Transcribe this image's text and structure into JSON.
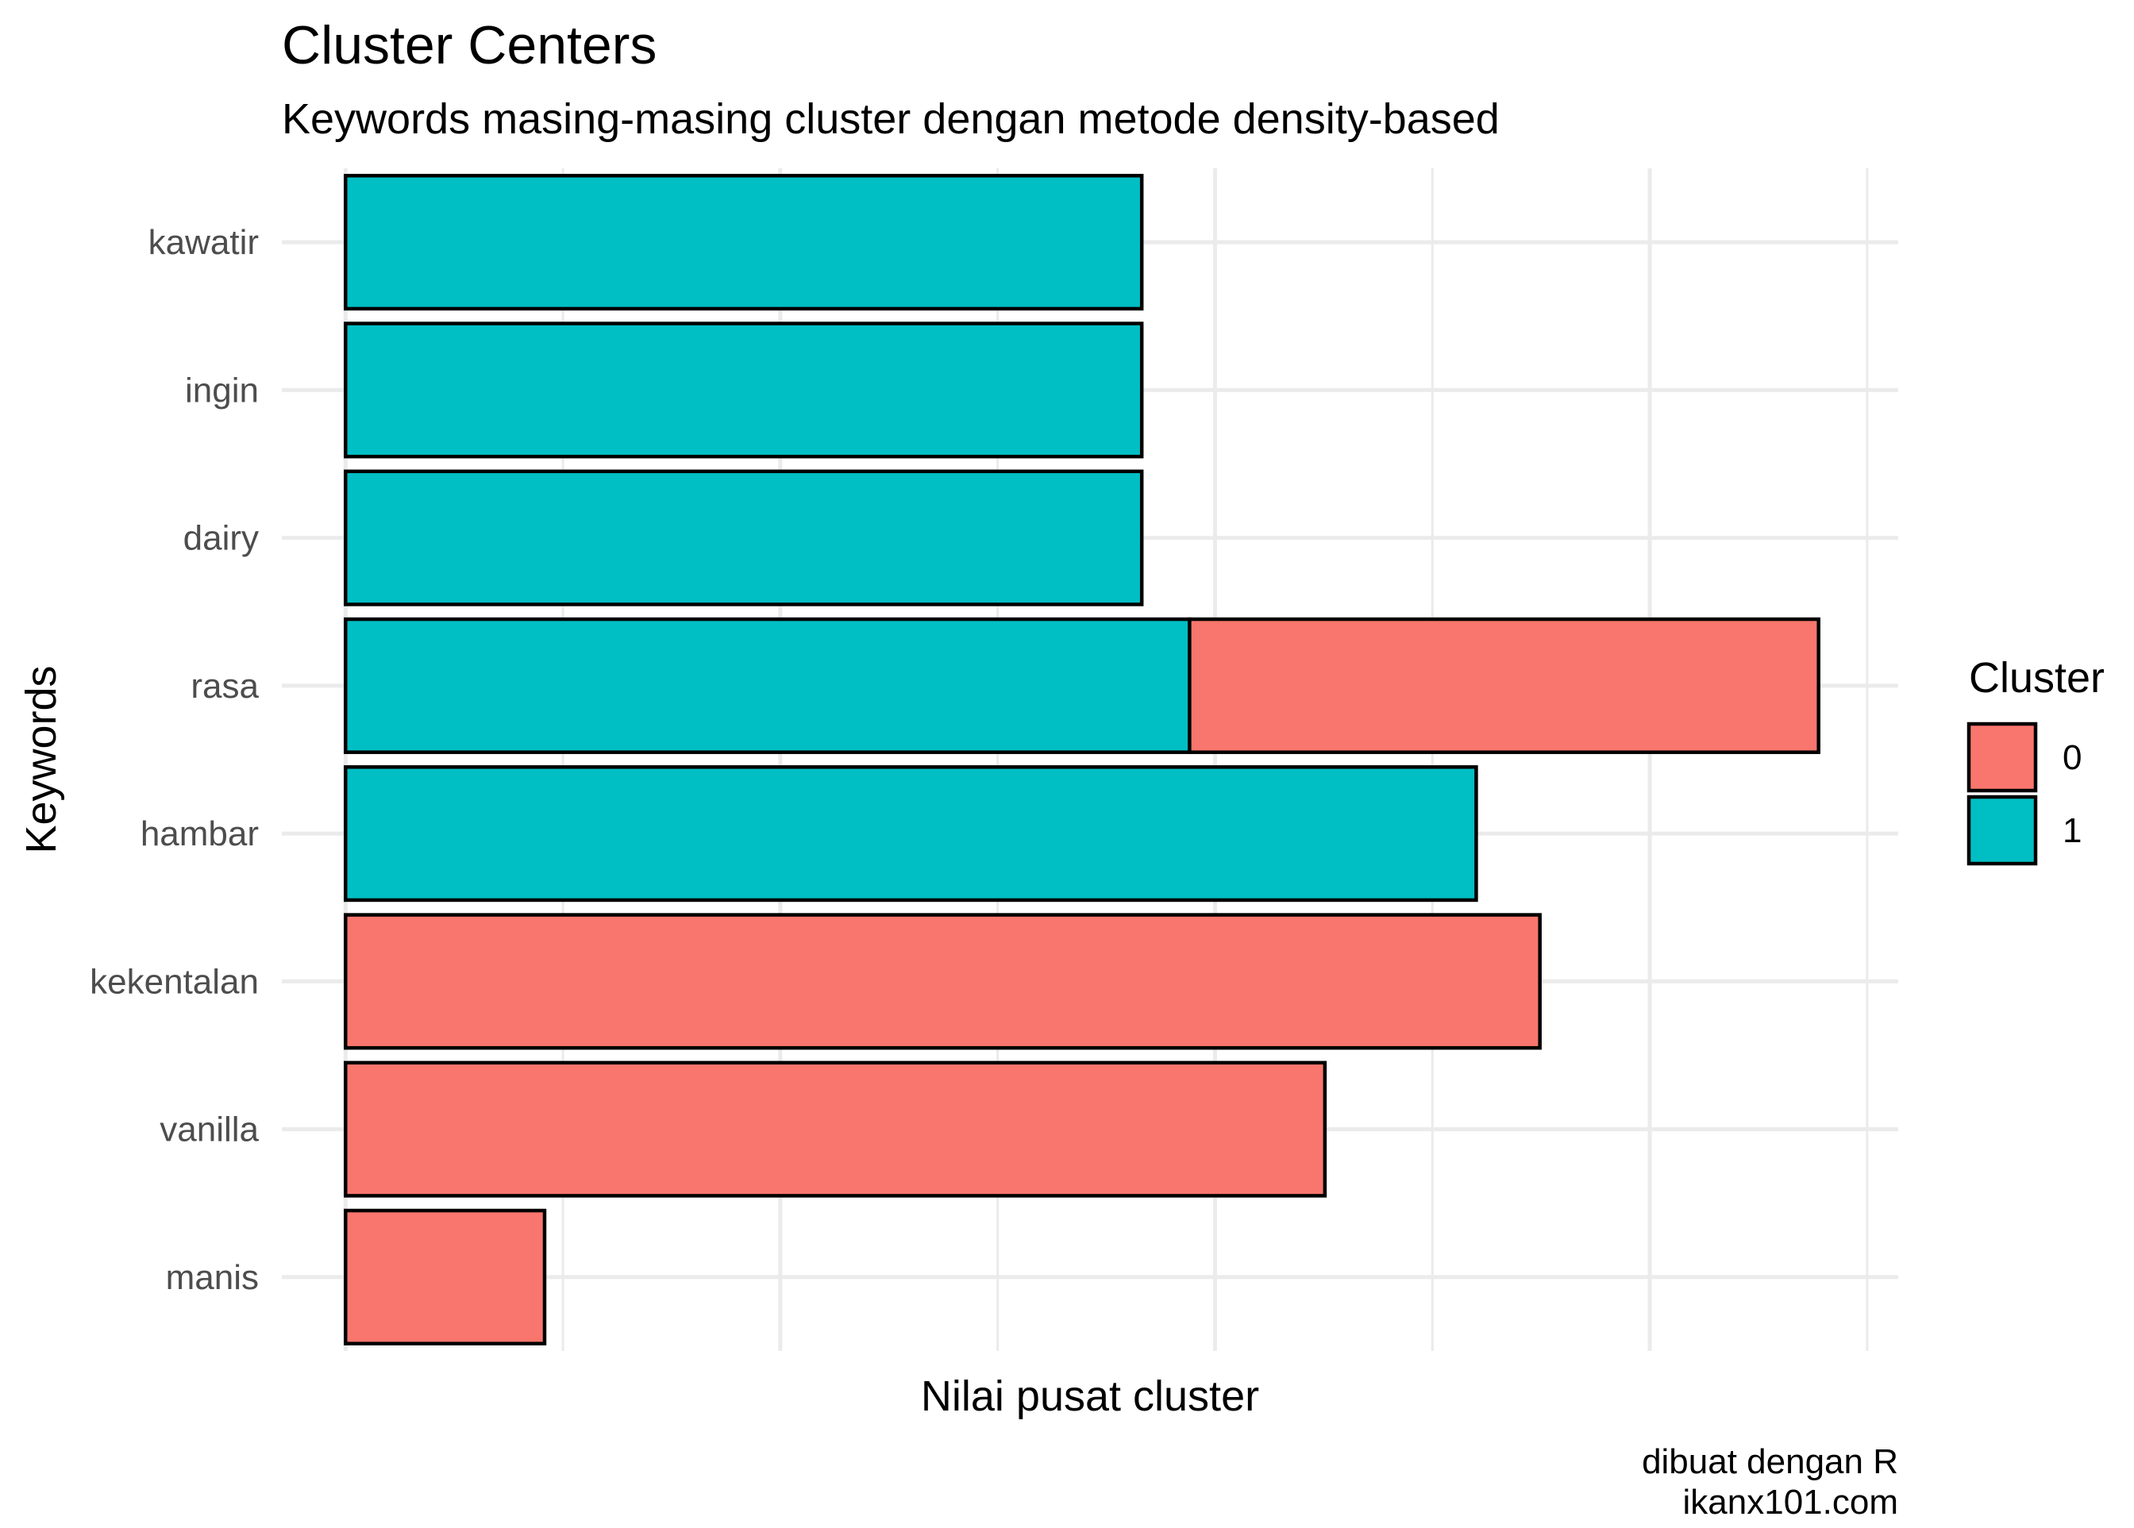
{
  "chart_data": {
    "type": "bar",
    "orientation": "horizontal",
    "stacked": true,
    "title": "Cluster Centers",
    "subtitle": "Keywords masing-masing cluster dengan metode density-based",
    "xlabel": "Nilai pusat cluster",
    "ylabel": "Keywords",
    "caption_lines": [
      "dibuat dengan R",
      "ikanx101.com"
    ],
    "x_tick_labels_shown": false,
    "grid": true,
    "legend": {
      "title": "Cluster",
      "placement": "right",
      "entries": [
        {
          "label": "0",
          "color": "#F8766D"
        },
        {
          "label": "1",
          "color": "#00BFC4"
        }
      ]
    },
    "categories": [
      "kawatir",
      "ingin",
      "dairy",
      "rasa",
      "hambar",
      "kekentalan",
      "vanilla",
      "manis"
    ],
    "series": [
      {
        "name": "1",
        "color": "#00BFC4",
        "values": [
          1.0,
          1.0,
          1.0,
          1.06,
          1.42,
          0,
          0,
          0
        ]
      },
      {
        "name": "0",
        "color": "#F8766D",
        "values": [
          0,
          0,
          0,
          0.79,
          0,
          1.5,
          1.23,
          0.25
        ]
      }
    ],
    "xlim": [
      -0.08,
      1.95
    ],
    "x_grid_major": [
      0,
      0.546,
      1.092,
      1.638
    ],
    "x_grid_minor": [
      0.273,
      0.819,
      1.365,
      1.911
    ]
  }
}
